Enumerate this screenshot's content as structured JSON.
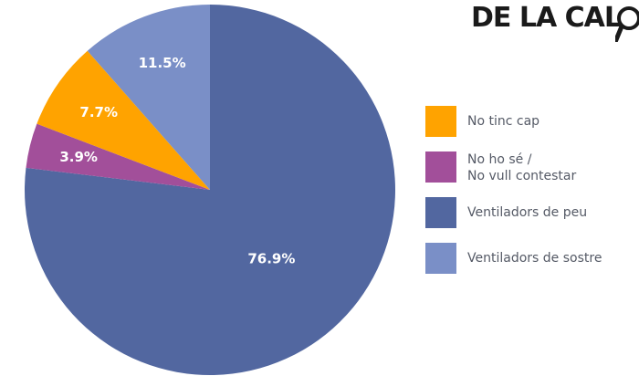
{
  "logo": {
    "text": "DE LA CAL"
  },
  "chart_data": {
    "type": "pie",
    "slices": [
      {
        "label": "Ventiladors de peu",
        "value": 76.9,
        "display": "76.9%",
        "color": "#5267a0"
      },
      {
        "label": "No ho sé /\nNo vull contestar",
        "value": 3.9,
        "display": "3.9%",
        "color": "#a24f9a"
      },
      {
        "label": "No tinc cap",
        "value": 7.7,
        "display": "7.7%",
        "color": "#ffa300"
      },
      {
        "label": "Ventiladors de sostre",
        "value": 11.5,
        "display": "11.5%",
        "color": "#7a8fc7"
      }
    ],
    "start_angle_deg": 0,
    "direction": "clockwise",
    "legend": {
      "position": "right",
      "items": [
        {
          "label": "No tinc cap",
          "color": "#ffa300"
        },
        {
          "label": "No ho sé /\nNo vull contestar",
          "color": "#a24f9a"
        },
        {
          "label": "Ventiladors de peu",
          "color": "#5267a0"
        },
        {
          "label": "Ventiladors de sostre",
          "color": "#7a8fc7"
        }
      ]
    }
  }
}
